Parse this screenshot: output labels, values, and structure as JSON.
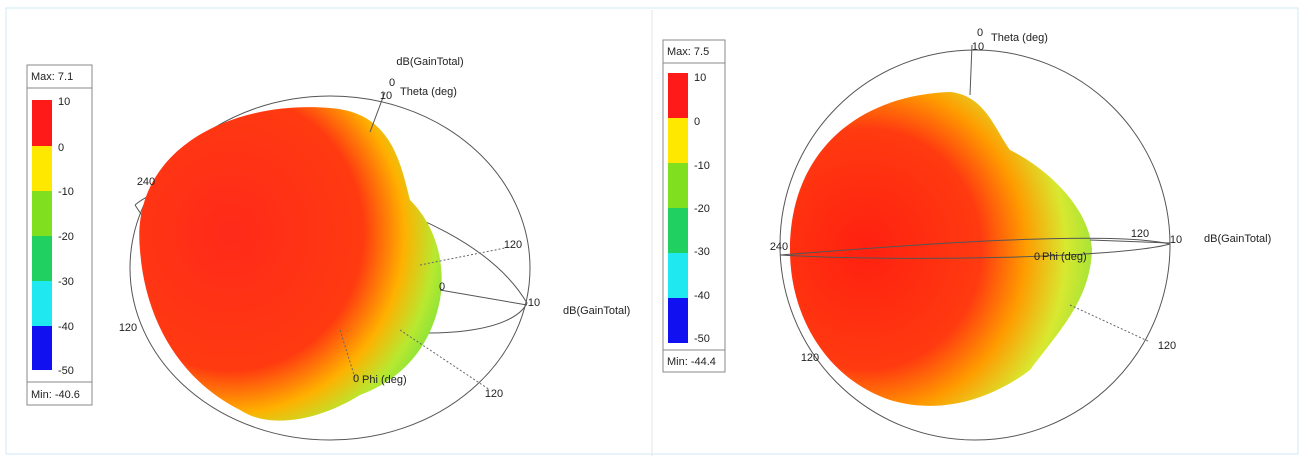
{
  "panels": [
    {
      "legend": {
        "max": "Max: 7.1",
        "min": "Min: -40.6",
        "labels": [
          "10",
          "0",
          "-10",
          "-20",
          "-30",
          "-40",
          "-50"
        ]
      },
      "labels": [
        "dB(GainTotal)",
        "0",
        "10",
        "Theta (deg)",
        "240",
        "120",
        "120",
        "0",
        "10",
        "dB(GainTotal)",
        "0",
        "Phi (deg)",
        "120"
      ]
    },
    {
      "legend": {
        "max": "Max: 7.5",
        "min": "Min: -44.4",
        "labels": [
          "10",
          "0",
          "-10",
          "-20",
          "-30",
          "-40",
          "-50"
        ]
      },
      "labels": [
        "0",
        "10",
        "Theta (deg)",
        "240",
        "120",
        "10",
        "dB(GainTotal)",
        "0",
        "Phi (deg)",
        "120",
        "120"
      ]
    }
  ]
}
